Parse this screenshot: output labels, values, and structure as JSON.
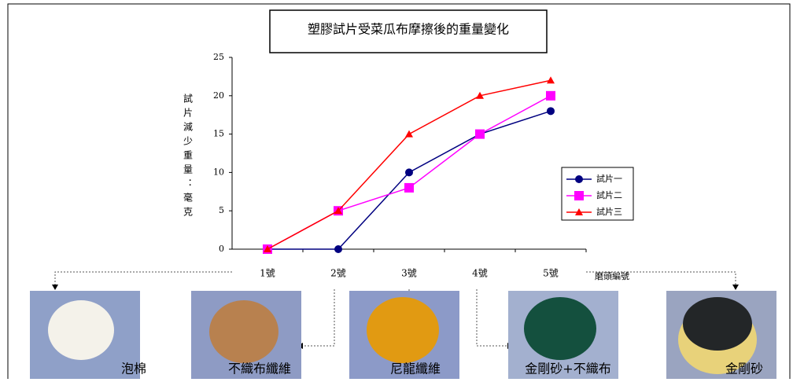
{
  "chart_data": {
    "type": "line",
    "title": "塑膠試片受菜瓜布摩擦後的重量變化",
    "y_label": "試片減少重量：毫克",
    "x_label": "磨頭編號",
    "categories": [
      "1號",
      "2號",
      "3號",
      "4號",
      "5號"
    ],
    "series": [
      {
        "name": "試片一",
        "color": "#000080",
        "marker": "circle",
        "values": [
          0,
          0,
          10,
          15,
          18
        ]
      },
      {
        "name": "試片二",
        "color": "#ff00ff",
        "marker": "square",
        "values": [
          0,
          5,
          8,
          15,
          20
        ]
      },
      {
        "name": "試片三",
        "color": "#ff0000",
        "marker": "triangle",
        "values": [
          0,
          5,
          15,
          20,
          22
        ]
      }
    ],
    "ylim": [
      0,
      25
    ],
    "yticks": [
      0,
      5,
      10,
      15,
      20,
      25
    ],
    "grid": false,
    "legend": "right"
  },
  "images": [
    {
      "caption": "泡棉"
    },
    {
      "caption": "不織布纖維"
    },
    {
      "caption": "尼龍纖維"
    },
    {
      "caption": "金剛砂+不織布"
    },
    {
      "caption": "金剛砂"
    }
  ]
}
